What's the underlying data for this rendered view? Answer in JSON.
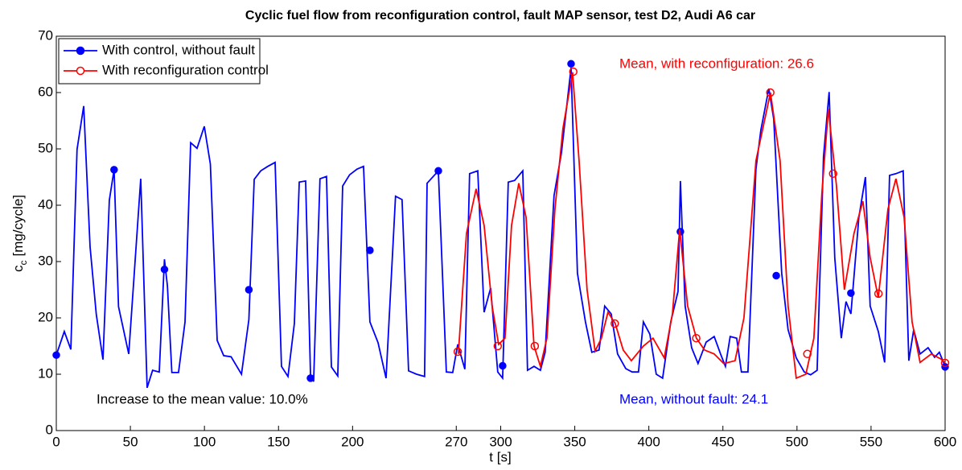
{
  "chart_data": {
    "type": "line",
    "title": "Cyclic fuel flow from reconfiguration control, fault MAP sensor, test D2, Audi A6 car",
    "xlabel": "t [s]",
    "ylabel": {
      "symbol": "c",
      "subscript": "c",
      "unit": "[mg/cycle]"
    },
    "xlim": [
      0,
      600
    ],
    "ylim": [
      0,
      70
    ],
    "xticks": [
      0,
      50,
      100,
      150,
      200,
      270,
      300,
      350,
      400,
      450,
      500,
      550,
      600
    ],
    "yticks": [
      0,
      10,
      20,
      30,
      40,
      50,
      60,
      70
    ],
    "grid": false,
    "legend": "upper left",
    "annotations": [
      "Mean, with reconfiguration: 26.6",
      "Mean, without fault: 24.1",
      "Increase to the mean value: 10.0%"
    ],
    "series": [
      {
        "name": "With control, without fault",
        "color": "#0000ff",
        "marker": "filled-circle",
        "x": [
          0,
          5.4,
          9.8,
          14,
          18.5,
          22.8,
          27,
          31.5,
          35.8,
          39,
          42,
          48.9,
          57,
          61.3,
          65,
          69.5,
          73,
          75,
          78,
          82.5,
          86.9,
          90.7,
          95,
          99.9,
          104,
          108.6,
          113,
          118,
          125,
          130,
          133.6,
          138,
          142.8,
          147.7,
          152,
          156.4,
          160.7,
          164,
          168.3,
          171.6,
          173.7,
          178,
          182.4,
          185.7,
          190,
          193.3,
          198,
          203,
          207.4,
          211.7,
          217.2,
          222.6,
          229,
          233.4,
          237.8,
          243.2,
          248.6,
          250.3,
          257.9,
          263.3,
          267.6,
          271,
          275.8,
          279,
          284.5,
          288.8,
          293.2,
          298,
          301.3,
          305.1,
          309.4,
          314.9,
          318.1,
          322.5,
          326.8,
          330,
          336,
          341,
          347.5,
          351.8,
          357.2,
          361.5,
          366.4,
          370.2,
          374.6,
          378.9,
          384.4,
          388.7,
          393,
          396.3,
          400.7,
          405,
          409.3,
          414.8,
          419.7,
          421.3,
          424.5,
          428.9,
          433.2,
          438.7,
          444.1,
          448.4,
          451.7,
          454.9,
          459.3,
          462.5,
          466.9,
          472.3,
          475.6,
          481,
          484.3,
          489.7,
          494,
          499.5,
          504.9,
          509.2,
          513.6,
          517.9,
          521.7,
          525.5,
          529.9,
          533.1,
          536.4,
          541.8,
          546.2,
          549.4,
          554.9,
          559.2,
          562.5,
          566.8,
          571.7,
          575.5,
          578.8,
          583.1,
          588.5,
          592.9,
          596.1,
          600
        ],
        "values": [
          13.4,
          17.6,
          14.4,
          49.9,
          57.6,
          32.6,
          20.6,
          12.6,
          40.9,
          46.3,
          22,
          13.6,
          44.7,
          7.6,
          10.7,
          10.4,
          30.4,
          25.7,
          10.3,
          10.3,
          19.3,
          51.1,
          50.1,
          54,
          47.3,
          16,
          13.3,
          13.1,
          10,
          19.7,
          44.6,
          46.1,
          46.9,
          47.6,
          11.4,
          9.6,
          19,
          44.1,
          44.3,
          9.9,
          8.7,
          44.7,
          45.1,
          11.3,
          9.7,
          43.4,
          45.4,
          46.4,
          46.9,
          19.3,
          15.6,
          9.3,
          41.6,
          41,
          10.6,
          10,
          9.6,
          43.9,
          46.1,
          10.4,
          10.3,
          15.3,
          10.9,
          45.6,
          46.1,
          21,
          25.3,
          10.4,
          9.3,
          44.1,
          44.4,
          46.1,
          10.7,
          11.4,
          10.7,
          13.9,
          41.7,
          49.3,
          64.4,
          27.9,
          19.3,
          13.9,
          14.3,
          22.1,
          20.7,
          13.6,
          11,
          10.4,
          10.4,
          19.3,
          17.1,
          10,
          9.3,
          19.3,
          24.7,
          44.3,
          22.1,
          14.7,
          11.9,
          15.7,
          16.7,
          13.6,
          11.4,
          16.7,
          16.4,
          10.4,
          10.4,
          46.4,
          53.3,
          60.7,
          55.3,
          27.9,
          17.9,
          12.9,
          10.4,
          9.9,
          10.7,
          48.6,
          60.1,
          30.7,
          16.4,
          22.9,
          20.7,
          37.9,
          45,
          22.1,
          17.6,
          12.1,
          45.3,
          45.6,
          46.1,
          12.4,
          17.9,
          13.6,
          14.7,
          13,
          13.9,
          11.4
        ],
        "marker_x": [
          0,
          39,
          73,
          130,
          171.6,
          211.7,
          257.9,
          301.3,
          347.5,
          421.3,
          486,
          536.4,
          600
        ],
        "marker_values": [
          13.4,
          46.3,
          28.6,
          25,
          9.3,
          32,
          46.1,
          11.5,
          65.1,
          35.3,
          27.5,
          24.4,
          11.3
        ]
      },
      {
        "name": "With reconfiguration control",
        "color": "#ff0000",
        "marker": "open-circle",
        "x": [
          271.4,
          276.9,
          283.4,
          288.8,
          294.2,
          298.6,
          302.9,
          307.3,
          312.2,
          317.1,
          322.5,
          326.8,
          331.2,
          336.6,
          342,
          348.5,
          352.9,
          358.3,
          363.7,
          368,
          372.4,
          377.3,
          382.7,
          388.2,
          396.3,
          402.8,
          410.4,
          415.9,
          420.8,
          426.2,
          432.1,
          437.6,
          444.1,
          450.6,
          458.2,
          464.2,
          472.3,
          482.1,
          488.6,
          494,
          499.5,
          506,
          511.4,
          516.8,
          521.2,
          526.6,
          532,
          538.5,
          544.5,
          549.4,
          554.9,
          561.4,
          566.8,
          572.3,
          577.7,
          583.1,
          590.7,
          597.2,
          600
        ],
        "values": [
          13.6,
          35,
          42.9,
          36.4,
          22.1,
          15.3,
          16.4,
          36.4,
          43.9,
          37.9,
          15,
          11.4,
          16.4,
          39.3,
          53.6,
          63.6,
          47.9,
          25,
          14.1,
          16.4,
          21,
          19,
          14.3,
          12.4,
          15,
          16.4,
          12.9,
          20.7,
          35.7,
          22.1,
          16.4,
          14.3,
          13.6,
          11.9,
          12.4,
          20,
          47.9,
          60,
          47.9,
          22.1,
          9.3,
          10,
          16.4,
          42.1,
          57.1,
          43.6,
          25,
          35,
          40.7,
          30.7,
          23.6,
          39.3,
          44.7,
          37.9,
          19.3,
          12.1,
          13.6,
          12.7,
          12
        ],
        "marker_x": [
          271,
          298,
          323,
          349,
          377,
          432,
          482,
          507,
          524.4,
          555,
          600
        ],
        "marker_values": [
          14,
          15,
          15,
          63.7,
          19,
          16.4,
          60,
          13.6,
          45.6,
          24.3,
          12
        ]
      }
    ]
  }
}
